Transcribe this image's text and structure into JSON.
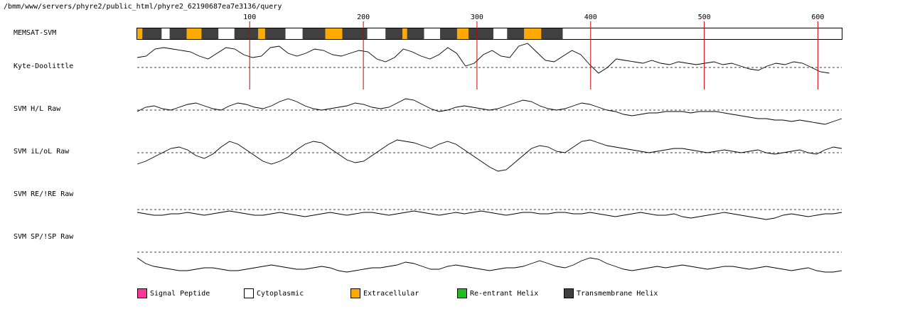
{
  "path": "/bmm/www/servers/phyre2/public_html/phyre2_62190687ea7e3136/query",
  "colors": {
    "signal_peptide": "#ff3399",
    "cytoplasmic": "#ffffff",
    "extracellular": "#ffaa00",
    "reentrant_helix": "#22bb22",
    "transmembrane_helix": "#404040",
    "marker": "#cc0000"
  },
  "tracks": [
    {
      "key": "memsat",
      "label": "MEMSAT-SVM"
    },
    {
      "key": "kd",
      "label": "Kyte-Doolittle"
    },
    {
      "key": "hl",
      "label": "SVM H/L Raw"
    },
    {
      "key": "ilol",
      "label": "SVM iL/oL Raw"
    },
    {
      "key": "reire",
      "label": "SVM RE/!RE Raw"
    },
    {
      "key": "spisp",
      "label": "SVM SP/!SP Raw"
    }
  ],
  "legend": [
    {
      "label": "Signal Peptide",
      "color_key": "signal_peptide"
    },
    {
      "label": "Cytoplasmic",
      "color_key": "cytoplasmic"
    },
    {
      "label": "Extracellular",
      "color_key": "extracellular"
    },
    {
      "label": "Re-entrant Helix",
      "color_key": "reentrant_helix"
    },
    {
      "label": "Transmembrane Helix",
      "color_key": "transmembrane_helix"
    }
  ],
  "chart_data": {
    "type": "line",
    "x_range": [
      1,
      621
    ],
    "ticks": [
      100,
      200,
      300,
      400,
      500,
      600
    ],
    "memsat_segments": [
      {
        "start": 1,
        "end": 5,
        "type": "extracellular"
      },
      {
        "start": 6,
        "end": 22,
        "type": "transmembrane_helix"
      },
      {
        "start": 23,
        "end": 29,
        "type": "cytoplasmic"
      },
      {
        "start": 30,
        "end": 44,
        "type": "transmembrane_helix"
      },
      {
        "start": 45,
        "end": 57,
        "type": "extracellular"
      },
      {
        "start": 58,
        "end": 72,
        "type": "transmembrane_helix"
      },
      {
        "start": 73,
        "end": 86,
        "type": "cytoplasmic"
      },
      {
        "start": 87,
        "end": 107,
        "type": "transmembrane_helix"
      },
      {
        "start": 108,
        "end": 113,
        "type": "extracellular"
      },
      {
        "start": 114,
        "end": 131,
        "type": "transmembrane_helix"
      },
      {
        "start": 132,
        "end": 146,
        "type": "cytoplasmic"
      },
      {
        "start": 147,
        "end": 166,
        "type": "transmembrane_helix"
      },
      {
        "start": 167,
        "end": 181,
        "type": "extracellular"
      },
      {
        "start": 182,
        "end": 203,
        "type": "transmembrane_helix"
      },
      {
        "start": 204,
        "end": 219,
        "type": "cytoplasmic"
      },
      {
        "start": 220,
        "end": 234,
        "type": "transmembrane_helix"
      },
      {
        "start": 235,
        "end": 238,
        "type": "extracellular"
      },
      {
        "start": 239,
        "end": 253,
        "type": "transmembrane_helix"
      },
      {
        "start": 254,
        "end": 267,
        "type": "cytoplasmic"
      },
      {
        "start": 268,
        "end": 282,
        "type": "transmembrane_helix"
      },
      {
        "start": 283,
        "end": 292,
        "type": "extracellular"
      },
      {
        "start": 293,
        "end": 314,
        "type": "transmembrane_helix"
      },
      {
        "start": 315,
        "end": 326,
        "type": "cytoplasmic"
      },
      {
        "start": 327,
        "end": 341,
        "type": "transmembrane_helix"
      },
      {
        "start": 342,
        "end": 356,
        "type": "extracellular"
      },
      {
        "start": 357,
        "end": 375,
        "type": "transmembrane_helix"
      },
      {
        "start": 376,
        "end": 621,
        "type": "cytoplasmic"
      }
    ],
    "series": [
      {
        "key": "kd",
        "x_end": 610,
        "y": [
          0.7,
          0.8,
          1.3,
          1.4,
          1.3,
          1.2,
          1.1,
          0.8,
          0.6,
          1.0,
          1.4,
          1.3,
          0.9,
          0.7,
          0.8,
          1.4,
          1.5,
          1.0,
          0.8,
          1.0,
          1.3,
          1.2,
          0.9,
          0.8,
          1.0,
          1.2,
          1.1,
          0.6,
          0.4,
          0.7,
          1.3,
          1.1,
          0.8,
          0.6,
          0.9,
          1.4,
          1.0,
          0.1,
          0.3,
          0.9,
          1.2,
          0.8,
          0.7,
          1.5,
          1.7,
          1.1,
          0.5,
          0.4,
          0.8,
          1.2,
          0.9,
          0.2,
          -0.4,
          0.0,
          0.6,
          0.5,
          0.4,
          0.3,
          0.5,
          0.3,
          0.2,
          0.4,
          0.3,
          0.2,
          0.3,
          0.4,
          0.2,
          0.3,
          0.1,
          -0.1,
          -0.2,
          0.1,
          0.3,
          0.2,
          0.4,
          0.3,
          0.0,
          -0.3,
          -0.4
        ]
      },
      {
        "key": "hl",
        "y": [
          -0.1,
          0.2,
          0.3,
          0.1,
          0.0,
          0.2,
          0.4,
          0.5,
          0.3,
          0.1,
          0.0,
          0.3,
          0.5,
          0.4,
          0.2,
          0.1,
          0.3,
          0.6,
          0.8,
          0.6,
          0.3,
          0.1,
          0.0,
          0.1,
          0.2,
          0.3,
          0.5,
          0.4,
          0.2,
          0.1,
          0.2,
          0.5,
          0.8,
          0.7,
          0.4,
          0.1,
          -0.1,
          0.0,
          0.2,
          0.3,
          0.2,
          0.1,
          0.0,
          0.1,
          0.3,
          0.5,
          0.7,
          0.6,
          0.3,
          0.1,
          0.0,
          0.1,
          0.3,
          0.5,
          0.4,
          0.2,
          0.0,
          -0.1,
          -0.3,
          -0.4,
          -0.3,
          -0.2,
          -0.2,
          -0.1,
          -0.1,
          -0.1,
          -0.2,
          -0.1,
          -0.1,
          -0.1,
          -0.2,
          -0.3,
          -0.4,
          -0.5,
          -0.6,
          -0.6,
          -0.7,
          -0.7,
          -0.8,
          -0.7,
          -0.8,
          -0.9,
          -1.0,
          -0.8,
          -0.6
        ]
      },
      {
        "key": "ilol",
        "y": [
          -0.8,
          -0.6,
          -0.3,
          0.0,
          0.3,
          0.4,
          0.2,
          -0.2,
          -0.4,
          -0.1,
          0.4,
          0.8,
          0.6,
          0.2,
          -0.2,
          -0.6,
          -0.8,
          -0.6,
          -0.3,
          0.2,
          0.6,
          0.8,
          0.7,
          0.3,
          -0.1,
          -0.5,
          -0.7,
          -0.6,
          -0.2,
          0.2,
          0.6,
          0.9,
          0.8,
          0.7,
          0.5,
          0.3,
          0.6,
          0.8,
          0.6,
          0.2,
          -0.2,
          -0.6,
          -1.0,
          -1.3,
          -1.2,
          -0.7,
          -0.2,
          0.3,
          0.5,
          0.4,
          0.1,
          0.0,
          0.4,
          0.8,
          0.9,
          0.7,
          0.5,
          0.4,
          0.3,
          0.2,
          0.1,
          0.0,
          0.1,
          0.2,
          0.3,
          0.3,
          0.2,
          0.1,
          0.0,
          0.1,
          0.2,
          0.1,
          0.0,
          0.1,
          0.2,
          0.0,
          -0.1,
          0.0,
          0.1,
          0.2,
          0.0,
          -0.1,
          0.2,
          0.4,
          0.3
        ]
      },
      {
        "key": "reire",
        "y": [
          -0.2,
          -0.3,
          -0.4,
          -0.4,
          -0.3,
          -0.3,
          -0.2,
          -0.3,
          -0.4,
          -0.3,
          -0.2,
          -0.1,
          -0.2,
          -0.3,
          -0.4,
          -0.4,
          -0.3,
          -0.2,
          -0.3,
          -0.4,
          -0.5,
          -0.4,
          -0.3,
          -0.2,
          -0.3,
          -0.4,
          -0.3,
          -0.2,
          -0.2,
          -0.3,
          -0.4,
          -0.3,
          -0.2,
          -0.1,
          -0.2,
          -0.3,
          -0.4,
          -0.3,
          -0.2,
          -0.3,
          -0.2,
          -0.1,
          -0.2,
          -0.3,
          -0.4,
          -0.3,
          -0.2,
          -0.2,
          -0.3,
          -0.3,
          -0.2,
          -0.2,
          -0.3,
          -0.3,
          -0.2,
          -0.3,
          -0.4,
          -0.5,
          -0.4,
          -0.3,
          -0.2,
          -0.3,
          -0.4,
          -0.4,
          -0.3,
          -0.5,
          -0.6,
          -0.5,
          -0.4,
          -0.3,
          -0.2,
          -0.3,
          -0.4,
          -0.5,
          -0.6,
          -0.7,
          -0.6,
          -0.4,
          -0.3,
          -0.4,
          -0.5,
          -0.4,
          -0.3,
          -0.3,
          -0.2
        ]
      },
      {
        "key": "spisp",
        "y": [
          -0.4,
          -0.8,
          -1.0,
          -1.1,
          -1.2,
          -1.3,
          -1.3,
          -1.2,
          -1.1,
          -1.1,
          -1.2,
          -1.3,
          -1.3,
          -1.2,
          -1.1,
          -1.0,
          -0.9,
          -1.0,
          -1.1,
          -1.2,
          -1.2,
          -1.1,
          -1.0,
          -1.1,
          -1.3,
          -1.4,
          -1.3,
          -1.2,
          -1.1,
          -1.1,
          -1.0,
          -0.9,
          -0.7,
          -0.8,
          -1.0,
          -1.2,
          -1.2,
          -1.0,
          -0.9,
          -1.0,
          -1.1,
          -1.2,
          -1.3,
          -1.2,
          -1.1,
          -1.1,
          -1.0,
          -0.8,
          -0.6,
          -0.8,
          -1.0,
          -1.1,
          -0.9,
          -0.6,
          -0.4,
          -0.5,
          -0.8,
          -1.0,
          -1.2,
          -1.3,
          -1.2,
          -1.1,
          -1.0,
          -1.1,
          -1.0,
          -0.9,
          -1.0,
          -1.1,
          -1.2,
          -1.1,
          -1.0,
          -1.0,
          -1.1,
          -1.2,
          -1.1,
          -1.0,
          -1.1,
          -1.2,
          -1.3,
          -1.2,
          -1.1,
          -1.3,
          -1.4,
          -1.4,
          -1.3
        ]
      }
    ]
  }
}
